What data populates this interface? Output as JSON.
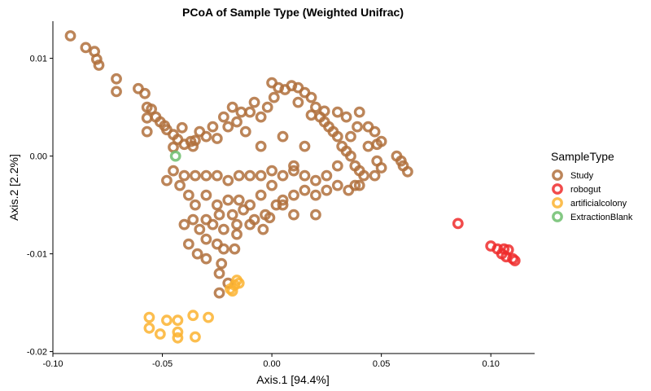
{
  "chart_data": {
    "type": "scatter",
    "title": "PCoA of Sample Type (Weighted Unifrac)",
    "xlabel": "Axis.1   [94.4%]",
    "ylabel": "Axis.2   [2.2%]",
    "xlim": [
      -0.1,
      0.12
    ],
    "ylim": [
      -0.0202,
      0.0138
    ],
    "xticks": [
      -0.1,
      -0.05,
      0.0,
      0.05,
      0.1
    ],
    "xtick_labels": [
      "-0.10",
      "-0.05",
      "0.00",
      "0.05",
      "0.10"
    ],
    "yticks": [
      -0.02,
      -0.01,
      0.0,
      0.01
    ],
    "ytick_labels": [
      "-0.02",
      "-0.01",
      "0.00",
      "0.01"
    ],
    "grid": false,
    "legend_title": "SampleType",
    "legend_position": "right",
    "series": [
      {
        "name": "Study",
        "color": "#B0703C",
        "points": [
          [
            -0.092,
            0.0123
          ],
          [
            -0.085,
            0.0111
          ],
          [
            -0.081,
            0.0107
          ],
          [
            -0.08,
            0.0099
          ],
          [
            -0.079,
            0.0093
          ],
          [
            -0.071,
            0.0079
          ],
          [
            -0.071,
            0.0066
          ],
          [
            -0.061,
            0.0069
          ],
          [
            -0.058,
            0.0064
          ],
          [
            -0.057,
            0.005
          ],
          [
            -0.055,
            0.0048
          ],
          [
            -0.057,
            0.0039
          ],
          [
            -0.053,
            0.004
          ],
          [
            -0.051,
            0.0035
          ],
          [
            -0.049,
            0.0031
          ],
          [
            -0.048,
            0.0027
          ],
          [
            -0.057,
            0.0025
          ],
          [
            -0.045,
            0.0022
          ],
          [
            -0.041,
            0.0029
          ],
          [
            -0.043,
            0.0017
          ],
          [
            -0.04,
            0.0012
          ],
          [
            -0.037,
            0.0015
          ],
          [
            -0.036,
            0.001
          ],
          [
            -0.033,
            0.0025
          ],
          [
            -0.045,
            0.0009
          ],
          [
            -0.035,
            0.0016
          ],
          [
            -0.03,
            0.002
          ],
          [
            -0.027,
            0.003
          ],
          [
            -0.025,
            0.0018
          ],
          [
            -0.022,
            0.004
          ],
          [
            -0.02,
            0.003
          ],
          [
            -0.018,
            0.005
          ],
          [
            -0.016,
            0.0035
          ],
          [
            -0.012,
            0.0025
          ],
          [
            -0.01,
            0.0045
          ],
          [
            -0.008,
            0.0055
          ],
          [
            -0.005,
            0.004
          ],
          [
            -0.002,
            0.005
          ],
          [
            0.0,
            0.0075
          ],
          [
            0.003,
            0.007
          ],
          [
            0.006,
            0.0068
          ],
          [
            0.009,
            0.0072
          ],
          [
            0.012,
            0.007
          ],
          [
            0.015,
            0.0065
          ],
          [
            0.018,
            0.006
          ],
          [
            0.02,
            0.005
          ],
          [
            0.022,
            0.004
          ],
          [
            0.024,
            0.0035
          ],
          [
            0.026,
            0.003
          ],
          [
            0.028,
            0.0025
          ],
          [
            0.03,
            0.002
          ],
          [
            0.032,
            0.001
          ],
          [
            0.034,
            0.0005
          ],
          [
            0.036,
            0.0
          ],
          [
            0.038,
            -0.001
          ],
          [
            0.04,
            -0.0015
          ],
          [
            0.042,
            -0.002
          ],
          [
            0.039,
            0.003
          ],
          [
            0.034,
            0.004
          ],
          [
            0.03,
            0.0045
          ],
          [
            0.04,
            0.0045
          ],
          [
            0.036,
            0.002
          ],
          [
            0.044,
            0.003
          ],
          [
            0.047,
            0.0025
          ],
          [
            0.048,
            0.0012
          ],
          [
            0.05,
            0.0015
          ],
          [
            0.048,
            -0.0005
          ],
          [
            0.044,
            0.001
          ],
          [
            0.057,
            0.0
          ],
          [
            0.059,
            -0.0005
          ],
          [
            0.06,
            -0.001
          ],
          [
            0.062,
            -0.0016
          ],
          [
            0.05,
            -0.0012
          ],
          [
            0.047,
            -0.002
          ],
          [
            0.04,
            -0.003
          ],
          [
            0.035,
            -0.0035
          ],
          [
            0.03,
            -0.003
          ],
          [
            0.025,
            -0.002
          ],
          [
            0.02,
            -0.0025
          ],
          [
            0.015,
            -0.002
          ],
          [
            0.01,
            -0.0015
          ],
          [
            0.005,
            -0.002
          ],
          [
            0.0,
            -0.0015
          ],
          [
            -0.005,
            -0.002
          ],
          [
            -0.01,
            -0.002
          ],
          [
            -0.015,
            -0.002
          ],
          [
            -0.02,
            -0.0025
          ],
          [
            -0.025,
            -0.002
          ],
          [
            -0.03,
            -0.002
          ],
          [
            -0.035,
            -0.002
          ],
          [
            -0.04,
            -0.002
          ],
          [
            -0.045,
            -0.0015
          ],
          [
            -0.048,
            -0.0025
          ],
          [
            -0.042,
            -0.003
          ],
          [
            -0.038,
            -0.004
          ],
          [
            -0.035,
            -0.005
          ],
          [
            -0.03,
            -0.004
          ],
          [
            -0.025,
            -0.005
          ],
          [
            -0.02,
            -0.0045
          ],
          [
            -0.015,
            -0.0045
          ],
          [
            -0.01,
            -0.005
          ],
          [
            -0.005,
            -0.004
          ],
          [
            0.0,
            -0.003
          ],
          [
            0.005,
            -0.0045
          ],
          [
            0.01,
            -0.004
          ],
          [
            0.015,
            -0.0035
          ],
          [
            0.025,
            -0.0035
          ],
          [
            0.038,
            -0.003
          ],
          [
            0.02,
            -0.006
          ],
          [
            0.01,
            -0.006
          ],
          [
            0.005,
            -0.005
          ],
          [
            -0.003,
            -0.006
          ],
          [
            -0.008,
            -0.0065
          ],
          [
            -0.013,
            -0.0055
          ],
          [
            -0.018,
            -0.006
          ],
          [
            -0.024,
            -0.006
          ],
          [
            -0.03,
            -0.0065
          ],
          [
            -0.036,
            -0.0065
          ],
          [
            -0.04,
            -0.007
          ],
          [
            -0.033,
            -0.0075
          ],
          [
            -0.027,
            -0.007
          ],
          [
            -0.022,
            -0.0075
          ],
          [
            -0.016,
            -0.007
          ],
          [
            -0.01,
            -0.007
          ],
          [
            -0.004,
            -0.0075
          ],
          [
            -0.038,
            -0.009
          ],
          [
            -0.03,
            -0.0085
          ],
          [
            -0.025,
            -0.009
          ],
          [
            -0.022,
            -0.0095
          ],
          [
            -0.034,
            -0.01
          ],
          [
            -0.03,
            -0.0105
          ],
          [
            -0.023,
            -0.011
          ],
          [
            -0.024,
            -0.012
          ],
          [
            -0.024,
            -0.014
          ],
          [
            -0.02,
            -0.013
          ],
          [
            -0.017,
            -0.0095
          ],
          [
            -0.016,
            -0.008
          ],
          [
            -0.001,
            -0.0063
          ],
          [
            0.002,
            -0.005
          ],
          [
            0.02,
            -0.004
          ],
          [
            0.03,
            -0.001
          ],
          [
            0.015,
            0.001
          ],
          [
            0.005,
            0.002
          ],
          [
            -0.005,
            0.001
          ],
          [
            0.01,
            -0.001
          ],
          [
            0.012,
            0.0055
          ],
          [
            0.018,
            0.0042
          ],
          [
            0.024,
            0.0046
          ],
          [
            0.001,
            0.006
          ],
          [
            -0.014,
            0.0045
          ]
        ]
      },
      {
        "name": "robogut",
        "color": "#EE2C2C",
        "points": [
          [
            0.085,
            -0.0069
          ],
          [
            0.1,
            -0.0092
          ],
          [
            0.103,
            -0.0095
          ],
          [
            0.105,
            -0.01
          ],
          [
            0.106,
            -0.0095
          ],
          [
            0.107,
            -0.0103
          ],
          [
            0.108,
            -0.0096
          ],
          [
            0.11,
            -0.0105
          ],
          [
            0.111,
            -0.0107
          ]
        ]
      },
      {
        "name": "artificialcolony",
        "color": "#FBB330",
        "points": [
          [
            -0.018,
            -0.0138
          ],
          [
            -0.017,
            -0.0132
          ],
          [
            -0.016,
            -0.0127
          ],
          [
            -0.015,
            -0.013
          ],
          [
            -0.019,
            -0.0136
          ],
          [
            -0.056,
            -0.0165
          ],
          [
            -0.056,
            -0.0176
          ],
          [
            -0.048,
            -0.0168
          ],
          [
            -0.043,
            -0.0168
          ],
          [
            -0.043,
            -0.018
          ],
          [
            -0.043,
            -0.0186
          ],
          [
            -0.036,
            -0.0163
          ],
          [
            -0.029,
            -0.0165
          ],
          [
            -0.051,
            -0.0182
          ],
          [
            -0.035,
            -0.0185
          ]
        ]
      },
      {
        "name": "ExtractionBlank",
        "color": "#6DBE6D",
        "points": [
          [
            -0.044,
            0.0
          ]
        ]
      }
    ]
  }
}
